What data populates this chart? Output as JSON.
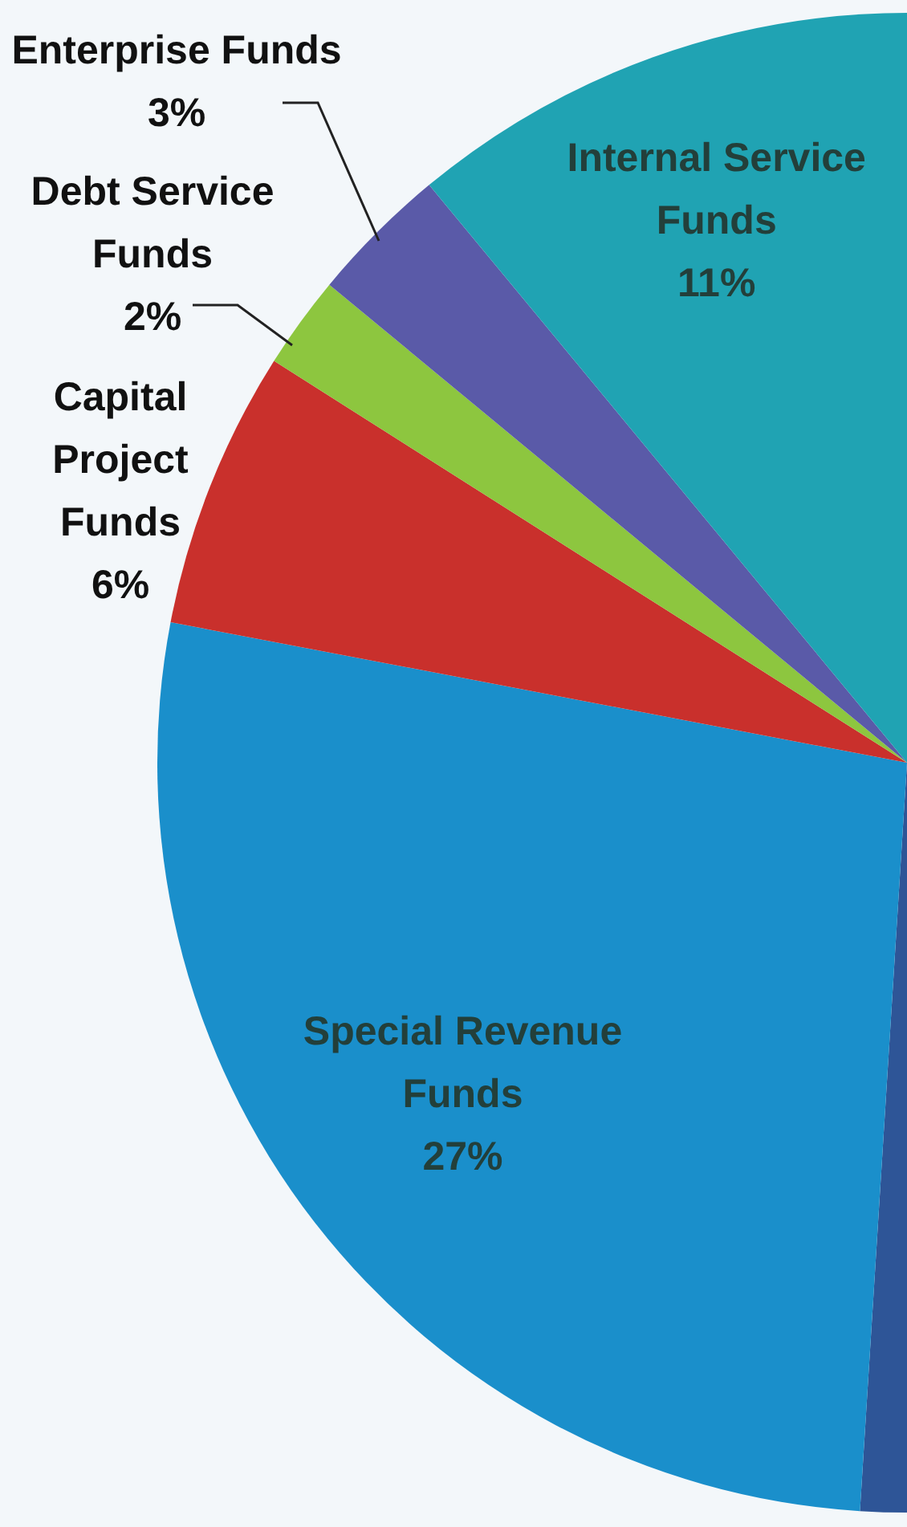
{
  "chart_data": {
    "type": "pie",
    "categories": [
      null,
      "Special Revenue Funds",
      "Capital Project Funds",
      "Debt Service Funds",
      "Enterprise Funds",
      "Internal Service Funds"
    ],
    "values": [
      51,
      27,
      6,
      2,
      3,
      11
    ],
    "colors": [
      "#2e5597",
      "#1a8fcb",
      "#c9302c",
      "#8dc63f",
      "#5a5aa8",
      "#20a3b3"
    ],
    "value_labels": [
      null,
      "27%",
      "6%",
      "2%",
      "3%",
      "11%"
    ],
    "legend": false
  }
}
